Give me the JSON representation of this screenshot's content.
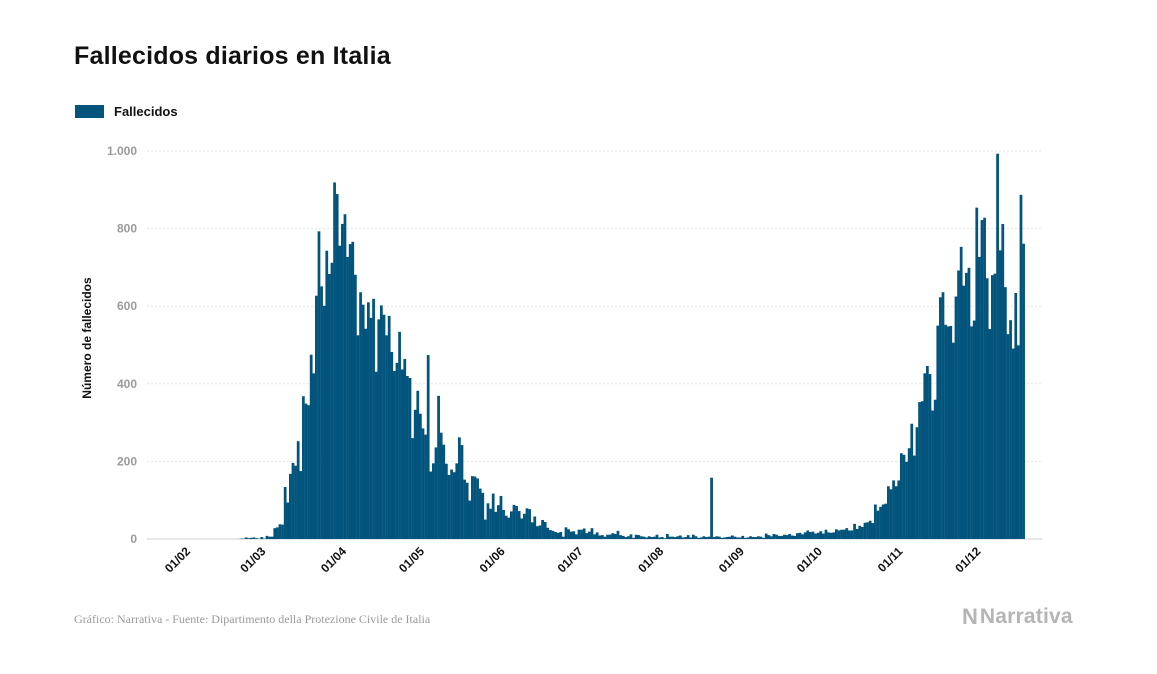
{
  "title": "Fallecidos diarios en Italia",
  "legend": {
    "label": "Fallecidos",
    "color": "#02547c"
  },
  "source": "Gráfico: Narrativa - Fuente: Dipartimento della Protezione Civile de Italia",
  "logo": {
    "mark": "N",
    "text": "Narrativa"
  },
  "chart_data": {
    "type": "bar",
    "title": "Fallecidos diarios en Italia",
    "xlabel": "",
    "ylabel": "Número de fallecidos",
    "ylim": [
      0,
      1000
    ],
    "y_ticks": [
      0,
      200,
      400,
      600,
      800,
      1000
    ],
    "y_tick_labels": [
      "0",
      "200",
      "400",
      "600",
      "800",
      "1.000"
    ],
    "x_tick_labels": [
      "01/02",
      "01/03",
      "01/04",
      "01/05",
      "01/06",
      "01/07",
      "01/08",
      "01/09",
      "01/10",
      "01/11",
      "01/12"
    ],
    "x_tick_day_index": [
      0,
      29,
      60,
      90,
      121,
      151,
      182,
      213,
      243,
      274,
      304
    ],
    "total_days": 316,
    "series": [
      {
        "name": "Fallecidos",
        "start_date": "2020-02-01",
        "values": [
          0,
          0,
          0,
          0,
          0,
          0,
          0,
          0,
          0,
          0,
          0,
          0,
          0,
          0,
          0,
          0,
          0,
          0,
          0,
          0,
          0,
          1,
          1,
          4,
          2,
          3,
          4,
          2,
          1,
          5,
          1,
          8,
          6,
          6,
          28,
          30,
          38,
          37,
          134,
          94,
          168,
          196,
          189,
          252,
          175,
          368,
          349,
          345,
          475,
          427,
          627,
          793,
          651,
          601,
          743,
          683,
          712,
          919,
          889,
          756,
          812,
          837,
          727,
          760,
          766,
          681,
          525,
          636,
          604,
          542,
          610,
          570,
          619,
          431,
          566,
          602,
          578,
          525,
          575,
          482,
          433,
          454,
          534,
          437,
          464,
          420,
          415,
          260,
          333,
          382,
          323,
          285,
          269,
          474,
          174,
          195,
          236,
          369,
          274,
          243,
          194,
          165,
          179,
          172,
          195,
          262,
          242,
          153,
          145,
          99,
          162,
          161,
          156,
          130,
          119,
          50,
          92,
          78,
          117,
          70,
          87,
          111,
          75,
          60,
          55,
          71,
          88,
          85,
          72,
          53,
          65,
          79,
          77,
          43,
          58,
          33,
          35,
          49,
          44,
          29,
          23,
          21,
          18,
          16,
          18,
          6,
          30,
          25,
          19,
          20,
          12,
          24,
          24,
          27,
          15,
          19,
          28,
          12,
          17,
          9,
          10,
          6,
          11,
          11,
          15,
          13,
          21,
          10,
          8,
          5,
          7,
          12,
          3,
          11,
          10,
          7,
          6,
          4,
          7,
          5,
          6,
          11,
          4,
          5,
          2,
          13,
          6,
          6,
          5,
          7,
          9,
          4,
          5,
          10,
          4,
          11,
          7,
          3,
          4,
          7,
          5,
          6,
          158,
          5,
          7,
          6,
          3,
          4,
          5,
          6,
          9,
          6,
          4,
          4,
          8,
          3,
          4,
          7,
          5,
          5,
          7,
          6,
          3,
          14,
          10,
          7,
          13,
          11,
          8,
          8,
          11,
          10,
          13,
          9,
          8,
          15,
          16,
          12,
          17,
          22,
          18,
          19,
          14,
          16,
          20,
          14,
          24,
          17,
          16,
          17,
          25,
          22,
          24,
          24,
          28,
          22,
          22,
          39,
          26,
          34,
          31,
          42,
          43,
          47,
          41,
          89,
          73,
          83,
          89,
          91,
          136,
          128,
          151,
          136,
          151,
          221,
          217,
          199,
          234,
          297,
          215,
          288,
          353,
          355,
          427,
          446,
          425,
          331,
          359,
          550,
          623,
          636,
          552,
          548,
          549,
          506,
          625,
          692,
          753,
          653,
          686,
          699,
          548,
          563,
          854,
          727,
          822,
          828,
          672,
          541,
          680,
          684,
          993,
          744,
          812,
          649,
          528,
          564,
          491,
          634,
          499,
          887,
          761
        ]
      }
    ]
  }
}
